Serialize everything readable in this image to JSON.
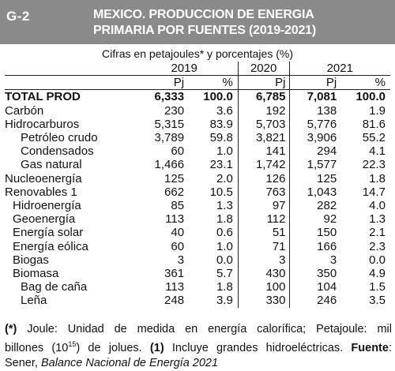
{
  "header": {
    "code": "G-2",
    "title_line1": "MEXICO. PRODUCCION DE ENERGIA",
    "title_line2": "PRIMARIA POR FUENTES (2019-2021)"
  },
  "subtitle": "Cifras en petajoules* y porcentajes (%)",
  "table": {
    "years": [
      "2019",
      "2020",
      "2021"
    ],
    "units": [
      "Pj",
      "%",
      "Pj",
      "Pj",
      "%"
    ],
    "rows": [
      {
        "label": "TOTAL PROD",
        "v": [
          "6,333",
          "100.0",
          "6,785",
          "7,081",
          "100.0"
        ]
      },
      {
        "label": "Carbón",
        "v": [
          "230",
          "3.6",
          "192",
          "138",
          "1.9"
        ]
      },
      {
        "label": "Hidrocarburos",
        "v": [
          "5,315",
          "83.9",
          "5,703",
          "5,776",
          "81.6"
        ]
      },
      {
        "label": "Petróleo crudo",
        "v": [
          "3,789",
          "59.8",
          "3,821",
          "3,906",
          "55.2"
        ]
      },
      {
        "label": "Condensados",
        "v": [
          "60",
          "1.0",
          "141",
          "294",
          "4.1"
        ]
      },
      {
        "label": "Gas natural",
        "v": [
          "1,466",
          "23.1",
          "1,742",
          "1,577",
          "22.3"
        ]
      },
      {
        "label": "Nucleoenergía",
        "v": [
          "125",
          "2.0",
          "126",
          "125",
          "1.8"
        ]
      },
      {
        "label": "Renovables 1",
        "v": [
          "662",
          "10.5",
          "763",
          "1,043",
          "14.7"
        ]
      },
      {
        "label": "Hidroenergía",
        "v": [
          "85",
          "1.3",
          "97",
          "282",
          "4.0"
        ]
      },
      {
        "label": "Geoenergía",
        "v": [
          "113",
          "1.8",
          "112",
          "92",
          "1.3"
        ]
      },
      {
        "label": "Energía solar",
        "v": [
          "40",
          "0.6",
          "51",
          "150",
          "2.1"
        ]
      },
      {
        "label": "Energía eólica",
        "v": [
          "60",
          "1.0",
          "71",
          "166",
          "2.3"
        ]
      },
      {
        "label": "Biogas",
        "v": [
          "3",
          "0.0",
          "3",
          "3",
          "0.0"
        ]
      },
      {
        "label": "Biomasa",
        "v": [
          "361",
          "5.7",
          "430",
          "350",
          "4.9"
        ]
      },
      {
        "label": "Bag de caña",
        "v": [
          "113",
          "1.8",
          "100",
          "104",
          "1.5"
        ]
      },
      {
        "label": "Leña",
        "v": [
          "248",
          "3.9",
          "330",
          "246",
          "3.5"
        ]
      }
    ]
  },
  "footnote": {
    "mark1": "(*)",
    "text1a": " Joule: Unidad de medida en energía calorífica; Petajoule: mil",
    "text1b_pre": "billones (10",
    "text1b_sup": "15",
    "text1b_post": ") de jolues. ",
    "mark2": "(1)",
    "text2": " Incluye grandes hidroeléctricas. ",
    "source_label": "Fuente",
    "source_colon": ":",
    "source_pre": "Sener, ",
    "source_title": "Balance Nacional de Energía 2021"
  }
}
